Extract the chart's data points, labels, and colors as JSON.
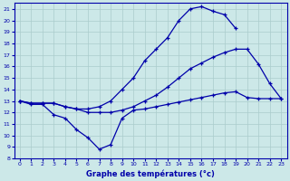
{
  "title": "Graphe des températures (°c)",
  "bg_color": "#cce8e8",
  "line_color": "#0000aa",
  "grid_color": "#aacccc",
  "xlim": [
    -0.5,
    23.5
  ],
  "ylim": [
    8,
    21.5
  ],
  "xticks": [
    0,
    1,
    2,
    3,
    4,
    5,
    6,
    7,
    8,
    9,
    10,
    11,
    12,
    13,
    14,
    15,
    16,
    17,
    18,
    19,
    20,
    21,
    22,
    23
  ],
  "yticks": [
    8,
    9,
    10,
    11,
    12,
    13,
    14,
    15,
    16,
    17,
    18,
    19,
    20,
    21
  ],
  "series": [
    {
      "x": [
        0,
        1,
        2,
        3,
        4,
        5,
        6,
        7,
        8,
        9,
        10,
        11,
        12,
        13,
        14,
        15,
        16,
        17,
        18,
        19
      ],
      "y": [
        13.0,
        12.8,
        12.8,
        12.8,
        12.5,
        12.3,
        12.3,
        12.5,
        13.0,
        14.0,
        15.0,
        16.5,
        17.5,
        18.5,
        20.0,
        21.0,
        21.2,
        20.8,
        20.5,
        19.3
      ]
    },
    {
      "x": [
        0,
        1,
        2,
        3,
        4,
        5,
        6,
        7,
        8,
        9,
        10,
        11,
        12,
        13,
        14,
        15,
        16,
        17,
        18,
        19,
        20,
        21,
        22,
        23
      ],
      "y": [
        13.0,
        12.8,
        12.8,
        12.8,
        12.5,
        12.3,
        12.0,
        12.0,
        12.0,
        12.2,
        12.5,
        13.0,
        13.5,
        14.2,
        15.0,
        15.8,
        16.3,
        16.8,
        17.2,
        17.5,
        17.5,
        16.2,
        14.5,
        13.2
      ]
    },
    {
      "x": [
        0,
        1,
        2,
        3,
        4,
        5,
        6,
        7,
        8,
        9,
        10,
        11,
        12,
        13,
        14,
        15,
        16,
        17,
        18,
        19,
        20,
        21,
        22,
        23
      ],
      "y": [
        13.0,
        12.7,
        12.7,
        11.8,
        11.5,
        10.5,
        9.8,
        8.8,
        9.2,
        11.5,
        12.2,
        12.3,
        12.5,
        12.7,
        12.9,
        13.1,
        13.3,
        13.5,
        13.7,
        13.8,
        13.3,
        13.2,
        13.2,
        13.2
      ]
    }
  ]
}
